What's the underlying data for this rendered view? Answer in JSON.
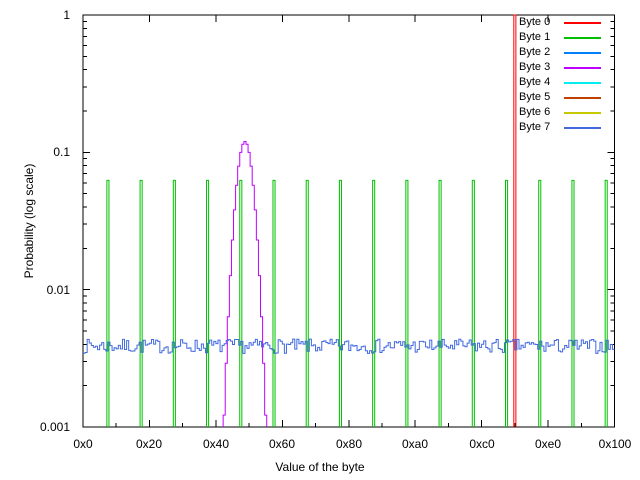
{
  "chart_data": {
    "type": "line",
    "title": "",
    "xlabel": "Value of the byte",
    "ylabel": "Probability (log scale)",
    "xlim": [
      0,
      256
    ],
    "ylim": [
      0.001,
      1
    ],
    "y_scale": "log10",
    "grid": false,
    "legend_position": "top-right-inside",
    "x_tick_labels": [
      "0x0",
      "0x20",
      "0x40",
      "0x60",
      "0x80",
      "0xa0",
      "0xc0",
      "0xe0",
      "0x100"
    ],
    "x_tick_values": [
      0,
      32,
      64,
      96,
      128,
      160,
      192,
      224,
      256
    ],
    "x_minor_tick_step": 16,
    "y_tick_labels": [
      "1",
      "0.1",
      "0.01",
      "0.001"
    ],
    "y_tick_values": [
      1,
      0.1,
      0.01,
      0.001
    ],
    "series": [
      {
        "name": "Byte 0",
        "color": "#ff0000",
        "kind": "spikes",
        "spike_values": [
          208
        ],
        "spike_probability": 1.0
      },
      {
        "name": "Byte 1",
        "color": "#00c000",
        "kind": "spikes",
        "spike_values": [
          12,
          28,
          44,
          60,
          76,
          92,
          108,
          124,
          140,
          156,
          172,
          188,
          204,
          220,
          236,
          252
        ],
        "spike_probability": 0.0625
      },
      {
        "name": "Byte 2",
        "color": "#0080ff",
        "kind": "hidden"
      },
      {
        "name": "Byte 3",
        "color": "#c000ff",
        "kind": "steps",
        "points": [
          [
            68,
            0.00122
          ],
          [
            69,
            0.00291
          ],
          [
            70,
            0.00635
          ],
          [
            71,
            0.01265
          ],
          [
            72,
            0.02298
          ],
          [
            73,
            0.03808
          ],
          [
            74,
            0.05756
          ],
          [
            75,
            0.07939
          ],
          [
            76,
            0.09987
          ],
          [
            77,
            0.11461
          ],
          [
            78,
            0.12
          ],
          [
            79,
            0.11461
          ],
          [
            80,
            0.09987
          ],
          [
            81,
            0.07939
          ],
          [
            82,
            0.05756
          ],
          [
            83,
            0.03808
          ],
          [
            84,
            0.02298
          ],
          [
            85,
            0.01265
          ],
          [
            86,
            0.00635
          ],
          [
            87,
            0.00291
          ],
          [
            88,
            0.00122
          ]
        ]
      },
      {
        "name": "Byte 4",
        "color": "#00eeee",
        "kind": "hidden"
      },
      {
        "name": "Byte 5",
        "color": "#c04000",
        "kind": "hidden"
      },
      {
        "name": "Byte 6",
        "color": "#c8c800",
        "kind": "hidden"
      },
      {
        "name": "Byte 7",
        "color": "#4169e1",
        "kind": "noise",
        "mean": 0.0039,
        "amplitude": 0.12,
        "count": 256,
        "seed": 7
      }
    ]
  }
}
